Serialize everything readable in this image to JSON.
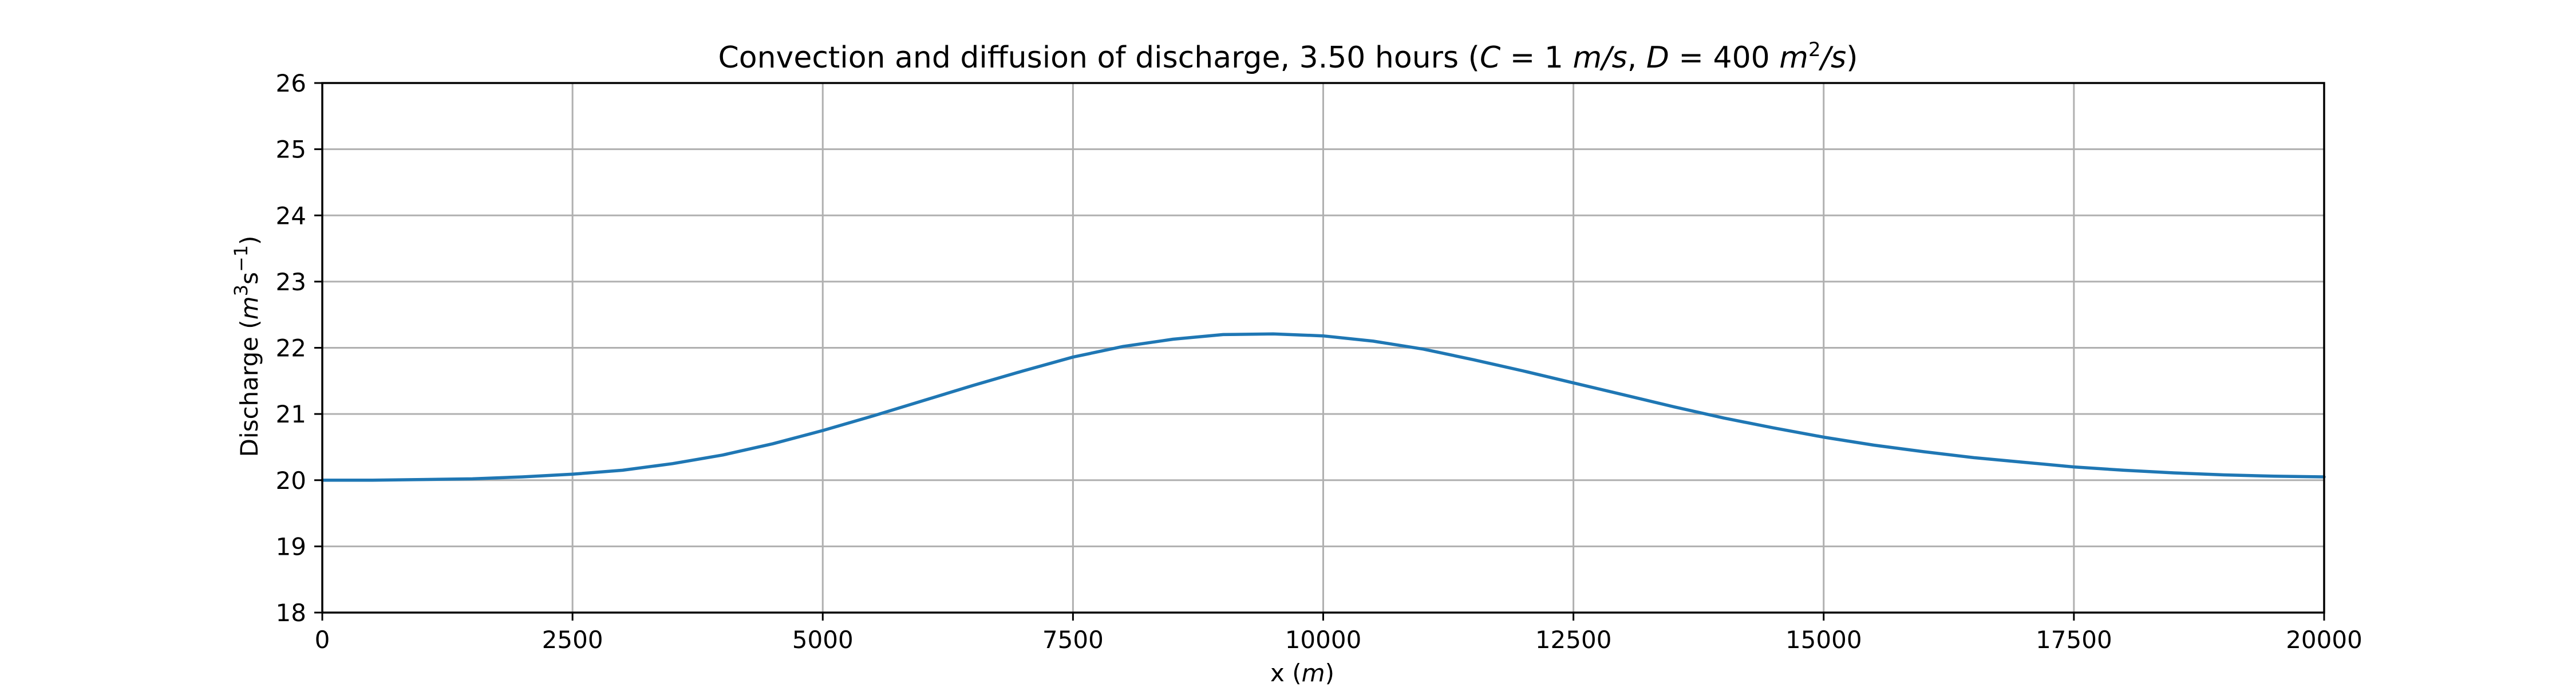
{
  "chart_data": {
    "type": "line",
    "title_prefix": "Convection and diffusion of discharge, 3.50 hours (",
    "title_c_var": "C",
    "title_c_rest": " = 1 ",
    "title_c_unit": "m/s",
    "title_sep": ", ",
    "title_d_var": "D",
    "title_d_rest": " = 400 ",
    "title_d_unit_m": "m",
    "title_d_unit_exp": "2",
    "title_d_unit_tail": "/s",
    "title_suffix": ")",
    "xlabel_text": "x (",
    "xlabel_unit": "m",
    "xlabel_close": ")",
    "ylabel_text": "Discharge (",
    "ylabel_unit_m": "m",
    "ylabel_unit_exp1": "3",
    "ylabel_unit_s": "s",
    "ylabel_unit_exp2": "−1",
    "ylabel_close": ")",
    "xlim": [
      0,
      20000
    ],
    "ylim": [
      18,
      26
    ],
    "xticks": [
      0,
      2500,
      5000,
      7500,
      10000,
      12500,
      15000,
      17500,
      20000
    ],
    "yticks": [
      18,
      19,
      20,
      21,
      22,
      23,
      24,
      25,
      26
    ],
    "grid": true,
    "line_color": "#1f77b4",
    "series": [
      {
        "x": [
          0,
          500,
          1000,
          1500,
          2000,
          2500,
          3000,
          3500,
          4000,
          4500,
          5000,
          5500,
          6000,
          6500,
          7000,
          7500,
          8000,
          8500,
          9000,
          9500,
          10000,
          10500,
          11000,
          11500,
          12000,
          12500,
          13000,
          13500,
          14000,
          14500,
          15000,
          15500,
          16000,
          16500,
          17000,
          17500,
          18000,
          18500,
          19000,
          19500,
          20000
        ],
        "y": [
          20.0,
          20.0,
          20.01,
          20.02,
          20.05,
          20.09,
          20.15,
          20.25,
          20.38,
          20.55,
          20.75,
          20.97,
          21.2,
          21.43,
          21.65,
          21.86,
          22.02,
          22.13,
          22.2,
          22.21,
          22.18,
          22.1,
          21.98,
          21.82,
          21.65,
          21.47,
          21.29,
          21.11,
          20.94,
          20.79,
          20.65,
          20.53,
          20.43,
          20.34,
          20.27,
          20.2,
          20.15,
          20.11,
          20.08,
          20.06,
          20.05
        ]
      }
    ]
  }
}
